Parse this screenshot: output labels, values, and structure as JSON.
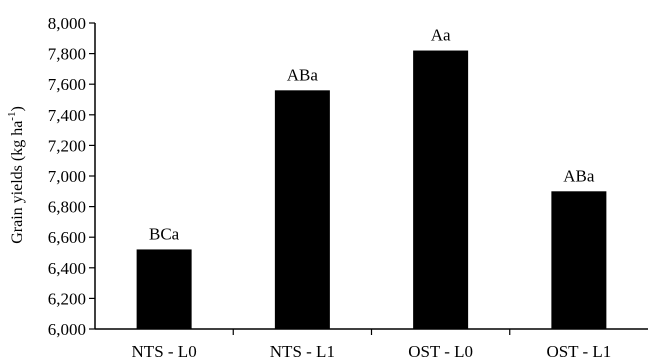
{
  "chart_data": {
    "type": "bar",
    "categories": [
      "NTS - L0",
      "NTS - L1",
      "OST - L0",
      "OST - L1"
    ],
    "values": [
      6520,
      7560,
      7820,
      6900
    ],
    "data_labels": [
      "BCa",
      "ABa",
      "Aa",
      "ABa"
    ],
    "ylabel": {
      "main": "Grain yields (kg ha",
      "sup": "-1",
      "close": ")"
    },
    "ylim": [
      6000,
      8000
    ],
    "yticks": [
      "6,000",
      "6,200",
      "6,400",
      "6,600",
      "6,800",
      "7,000",
      "7,200",
      "7,400",
      "7,600",
      "7,800",
      "8,000"
    ],
    "ytick_values": [
      6000,
      6200,
      6400,
      6600,
      6800,
      7000,
      7200,
      7400,
      7600,
      7800,
      8000
    ],
    "grid": false,
    "bar_color": "#000000"
  }
}
